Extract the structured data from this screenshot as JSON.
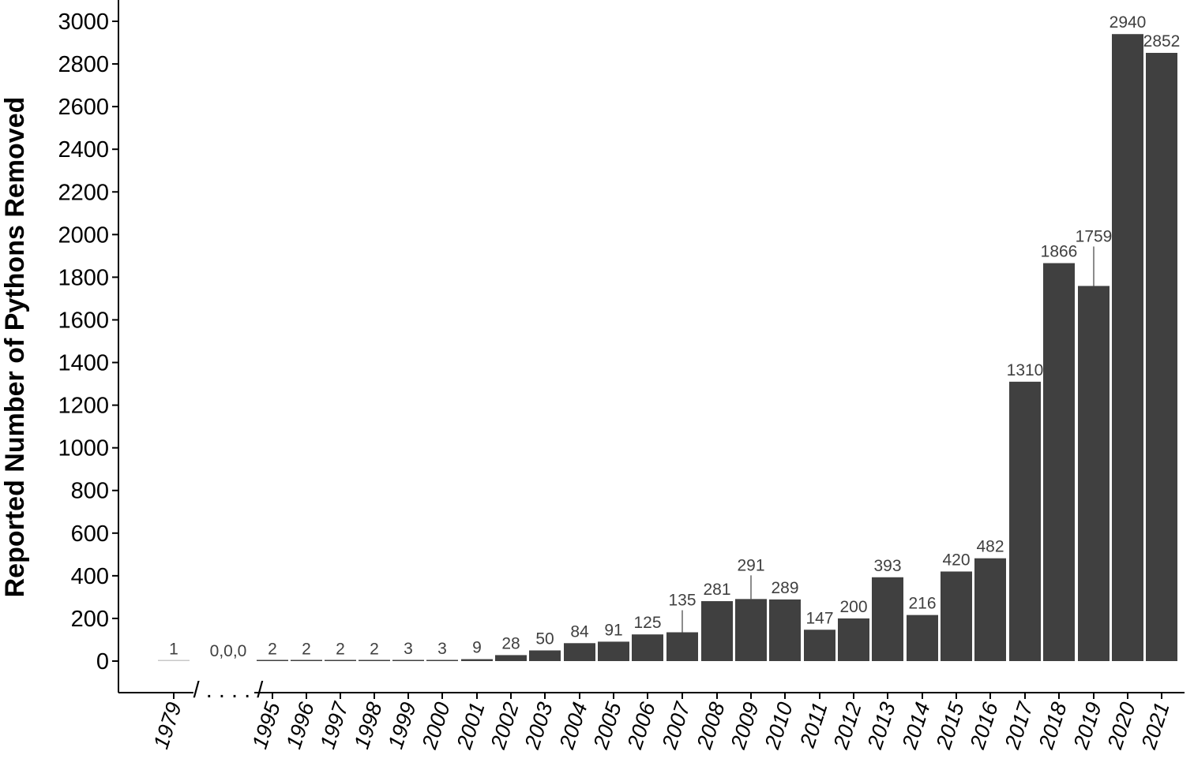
{
  "chart_data": {
    "type": "bar",
    "ylabel": "Reported Number of Pythons Removed",
    "xlabel": "",
    "ylim": [
      0,
      3000
    ],
    "yticks": [
      0,
      200,
      400,
      600,
      800,
      1000,
      1200,
      1400,
      1600,
      1800,
      2000,
      2200,
      2400,
      2600,
      2800,
      3000
    ],
    "colors": {
      "bar": "#404040",
      "bar_light": "#c8c8c8",
      "axis": "#000000",
      "label": "#404040"
    },
    "categories": [
      "1979",
      "1995",
      "1996",
      "1997",
      "1998",
      "1999",
      "2000",
      "2001",
      "2002",
      "2003",
      "2004",
      "2005",
      "2006",
      "2007",
      "2008",
      "2009",
      "2010",
      "2011",
      "2012",
      "2013",
      "2014",
      "2015",
      "2016",
      "2017",
      "2018",
      "2019",
      "2020",
      "2021"
    ],
    "values": [
      1,
      2,
      2,
      2,
      2,
      3,
      3,
      9,
      28,
      50,
      84,
      91,
      125,
      135,
      281,
      291,
      289,
      147,
      200,
      393,
      216,
      420,
      482,
      1310,
      1866,
      1759,
      2940,
      2852
    ],
    "labels": [
      "1",
      "2",
      "2",
      "2",
      "2",
      "3",
      "3",
      "9",
      "28",
      "50",
      "84",
      "91",
      "125",
      "135",
      "281",
      "291",
      "289",
      "147",
      "200",
      "393",
      "216",
      "420",
      "482",
      "1310",
      "1866",
      "1759",
      "2940",
      "2852"
    ],
    "gap_annotation": "0,0,0",
    "axis_break_marker": "/ . . . . /",
    "grid": false
  }
}
